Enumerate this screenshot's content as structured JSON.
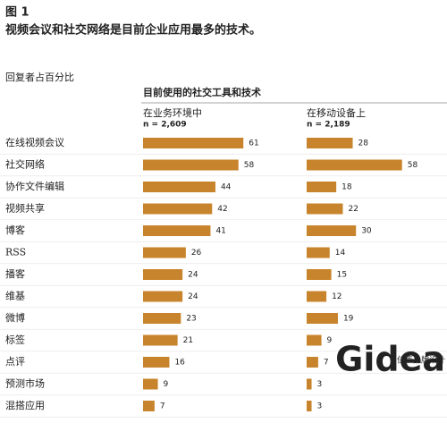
{
  "chart_data": {
    "type": "bar",
    "orientation": "horizontal",
    "title": "图 1",
    "subtitle": "视频会议和社交网络是目前企业应用最多的技术。",
    "axis_label": "回复者占百分比",
    "group_title": "目前使用的社交工具和技术",
    "categories": [
      "在线视频会议",
      "社交网络",
      "协作文件编辑",
      "视频共享",
      "博客",
      "RSS",
      "播客",
      "维基",
      "微博",
      "标签",
      "点评",
      "预测市场",
      "混搭应用"
    ],
    "series": [
      {
        "name": "在业务环境中",
        "note": "n = 2,609",
        "color": "#c8842c",
        "values": [
          61,
          58,
          44,
          42,
          41,
          26,
          24,
          24,
          23,
          21,
          16,
          9,
          7
        ]
      },
      {
        "name": "在移动设备上",
        "note": "n = 2,189",
        "color": "#c8842c",
        "values": [
          28,
          58,
          18,
          22,
          30,
          14,
          15,
          12,
          19,
          9,
          7,
          3,
          3
        ]
      }
    ],
    "watermark": {
      "brand": "Gidea",
      "tagline": "佳点品牌设计"
    }
  }
}
